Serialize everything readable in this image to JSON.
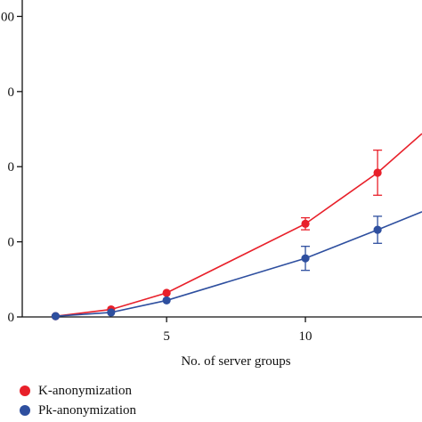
{
  "chart_data": {
    "type": "line",
    "title": "",
    "xlabel": "No. of server groups",
    "ylabel": "",
    "xlim": [
      -0.2,
      14.2
    ],
    "ylim": [
      0,
      205
    ],
    "x_ticks": [
      5,
      10
    ],
    "x_tick_labels": [
      "5",
      "10"
    ],
    "y_ticks": [
      0,
      50,
      100,
      150,
      200
    ],
    "y_tick_labels": [
      "0",
      "0",
      "0",
      "0",
      "00"
    ],
    "grid": false,
    "legend_position": "bottom-left",
    "series": [
      {
        "name": "K-anonymization",
        "color": "#e8202a",
        "x": [
          1,
          3,
          5,
          10,
          12.6,
          14.2
        ],
        "y": [
          0.5,
          5,
          16,
          62,
          96,
          122
        ],
        "error": [
          0,
          0,
          0,
          4,
          15,
          0
        ],
        "markers": [
          true,
          true,
          true,
          true,
          true,
          false
        ]
      },
      {
        "name": "Pk-anonymization",
        "color": "#2e4f9f",
        "x": [
          1,
          3,
          5,
          10,
          12.6,
          14.2
        ],
        "y": [
          0.5,
          3,
          11,
          39,
          58,
          70
        ],
        "error": [
          0,
          0,
          0,
          8,
          9,
          0
        ],
        "markers": [
          true,
          true,
          true,
          true,
          true,
          false
        ]
      }
    ]
  }
}
